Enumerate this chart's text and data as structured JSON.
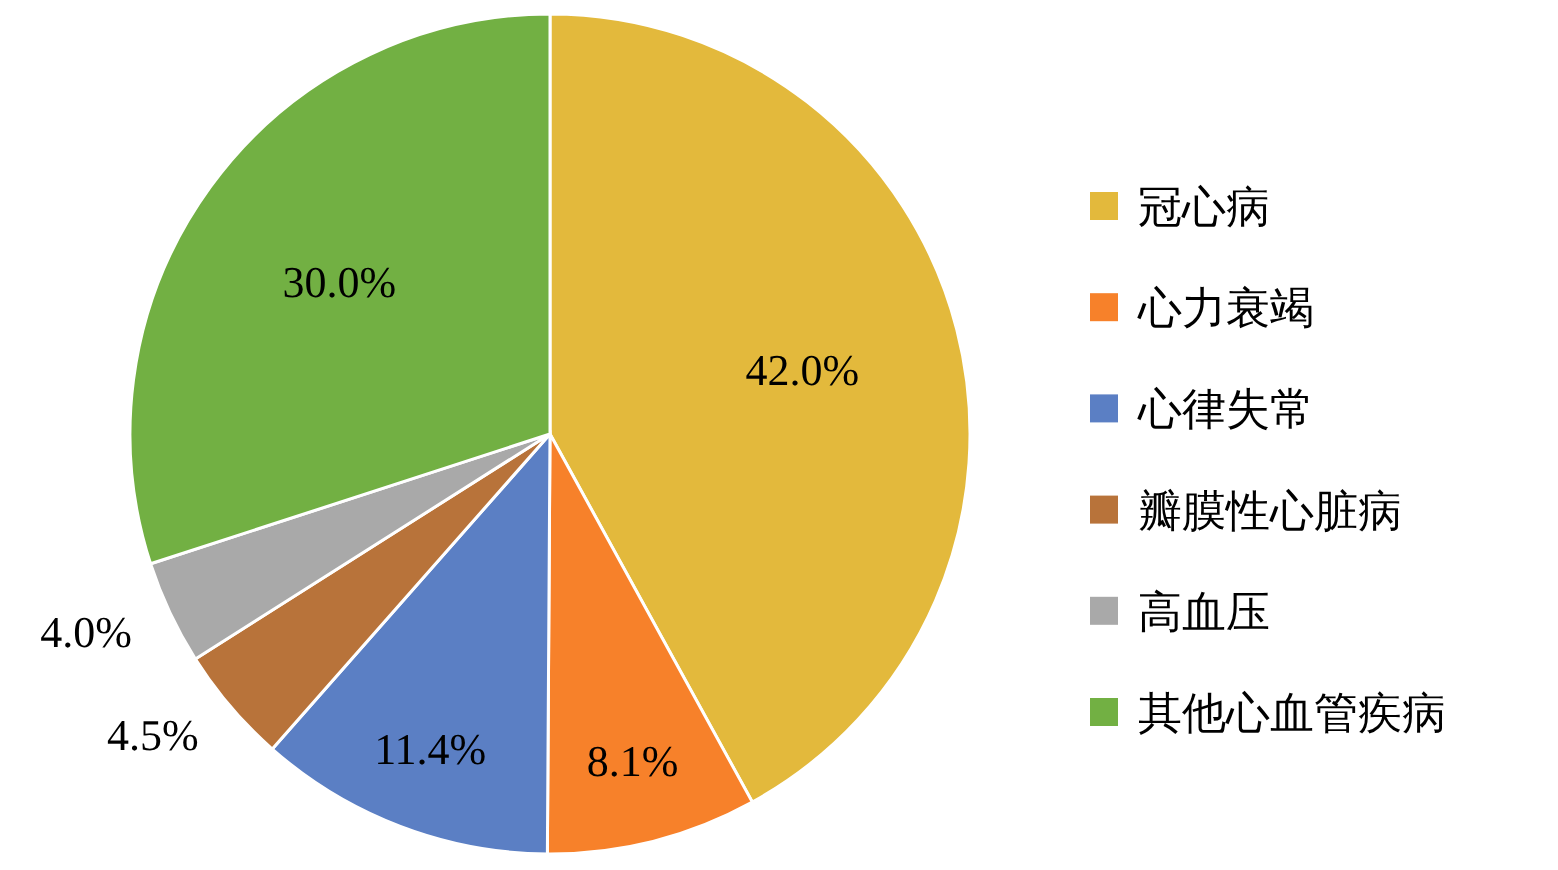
{
  "chart_data": {
    "type": "pie",
    "categories": [
      "冠心病",
      "心力衰竭",
      "心律失常",
      "瓣膜性心脏病",
      "高血压",
      "其他心血管疾病"
    ],
    "values": [
      42.0,
      8.1,
      11.4,
      4.5,
      4.0,
      30.0
    ],
    "colors": [
      "#e3b93c",
      "#f7812a",
      "#5b7fc4",
      "#b8733a",
      "#a9a9a9",
      "#72b043"
    ],
    "value_labels": [
      "42.0%",
      "8.1%",
      "11.4%",
      "4.5%",
      "4.0%",
      "30.0%"
    ],
    "legend": "right"
  }
}
